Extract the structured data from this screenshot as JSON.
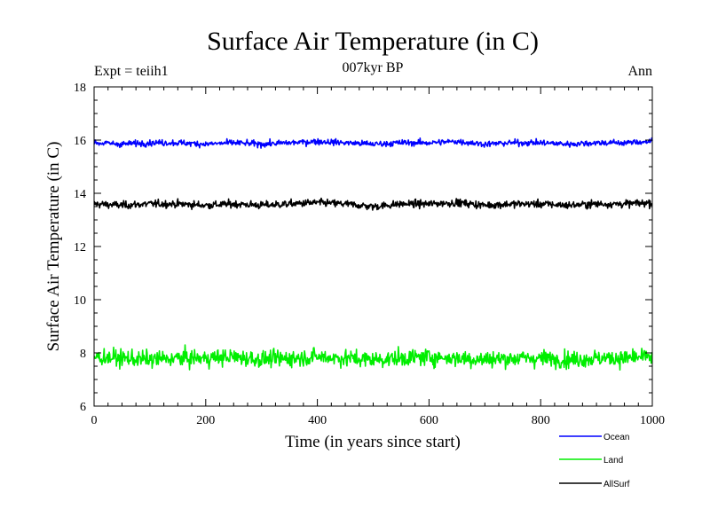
{
  "chart_data": {
    "type": "line",
    "title": "Surface Air Temperature (in C)",
    "subtitle": "007kyr BP",
    "left_label": "Expt = teiih1",
    "right_label": "Ann",
    "xlabel": "Time (in years since start)",
    "ylabel": "Surface Air Temperature (in C)",
    "xlim": [
      0,
      1000
    ],
    "ylim": [
      6,
      18
    ],
    "x_ticks": [
      "0",
      "200",
      "400",
      "600",
      "800",
      "1000"
    ],
    "y_ticks": [
      "6",
      "8",
      "10",
      "12",
      "14",
      "16",
      "18"
    ],
    "grid": false,
    "legend_position": "bottom-right, outside plot",
    "series": [
      {
        "name": "Ocean",
        "color": "#0000ff",
        "mean": 15.9,
        "variability": 0.08,
        "x": [
          0,
          50,
          100,
          150,
          200,
          250,
          300,
          350,
          400,
          450,
          500,
          550,
          600,
          650,
          700,
          750,
          800,
          850,
          900,
          950,
          1000
        ],
        "values": [
          15.9,
          15.85,
          15.9,
          15.9,
          15.85,
          15.9,
          15.85,
          15.9,
          15.95,
          15.9,
          15.85,
          15.9,
          15.9,
          15.95,
          15.85,
          15.9,
          15.9,
          15.85,
          15.9,
          15.9,
          15.95
        ]
      },
      {
        "name": "Land",
        "color": "#00ee00",
        "mean": 7.8,
        "variability": 0.22,
        "x": [
          0,
          50,
          100,
          150,
          200,
          250,
          300,
          350,
          400,
          450,
          500,
          550,
          600,
          650,
          700,
          750,
          800,
          850,
          900,
          950,
          1000
        ],
        "values": [
          7.85,
          7.8,
          7.75,
          7.8,
          7.8,
          7.85,
          7.75,
          7.8,
          7.85,
          7.8,
          7.75,
          7.8,
          7.85,
          7.8,
          7.75,
          7.8,
          7.8,
          7.75,
          7.8,
          7.8,
          7.85
        ]
      },
      {
        "name": "AllSurf",
        "color": "#000000",
        "mean": 13.6,
        "variability": 0.1,
        "x": [
          0,
          50,
          100,
          150,
          200,
          250,
          300,
          350,
          400,
          450,
          500,
          550,
          600,
          650,
          700,
          750,
          800,
          850,
          900,
          950,
          1000
        ],
        "values": [
          13.6,
          13.55,
          13.6,
          13.6,
          13.55,
          13.6,
          13.55,
          13.6,
          13.65,
          13.6,
          13.5,
          13.6,
          13.6,
          13.65,
          13.55,
          13.6,
          13.6,
          13.55,
          13.6,
          13.6,
          13.65
        ]
      }
    ]
  }
}
